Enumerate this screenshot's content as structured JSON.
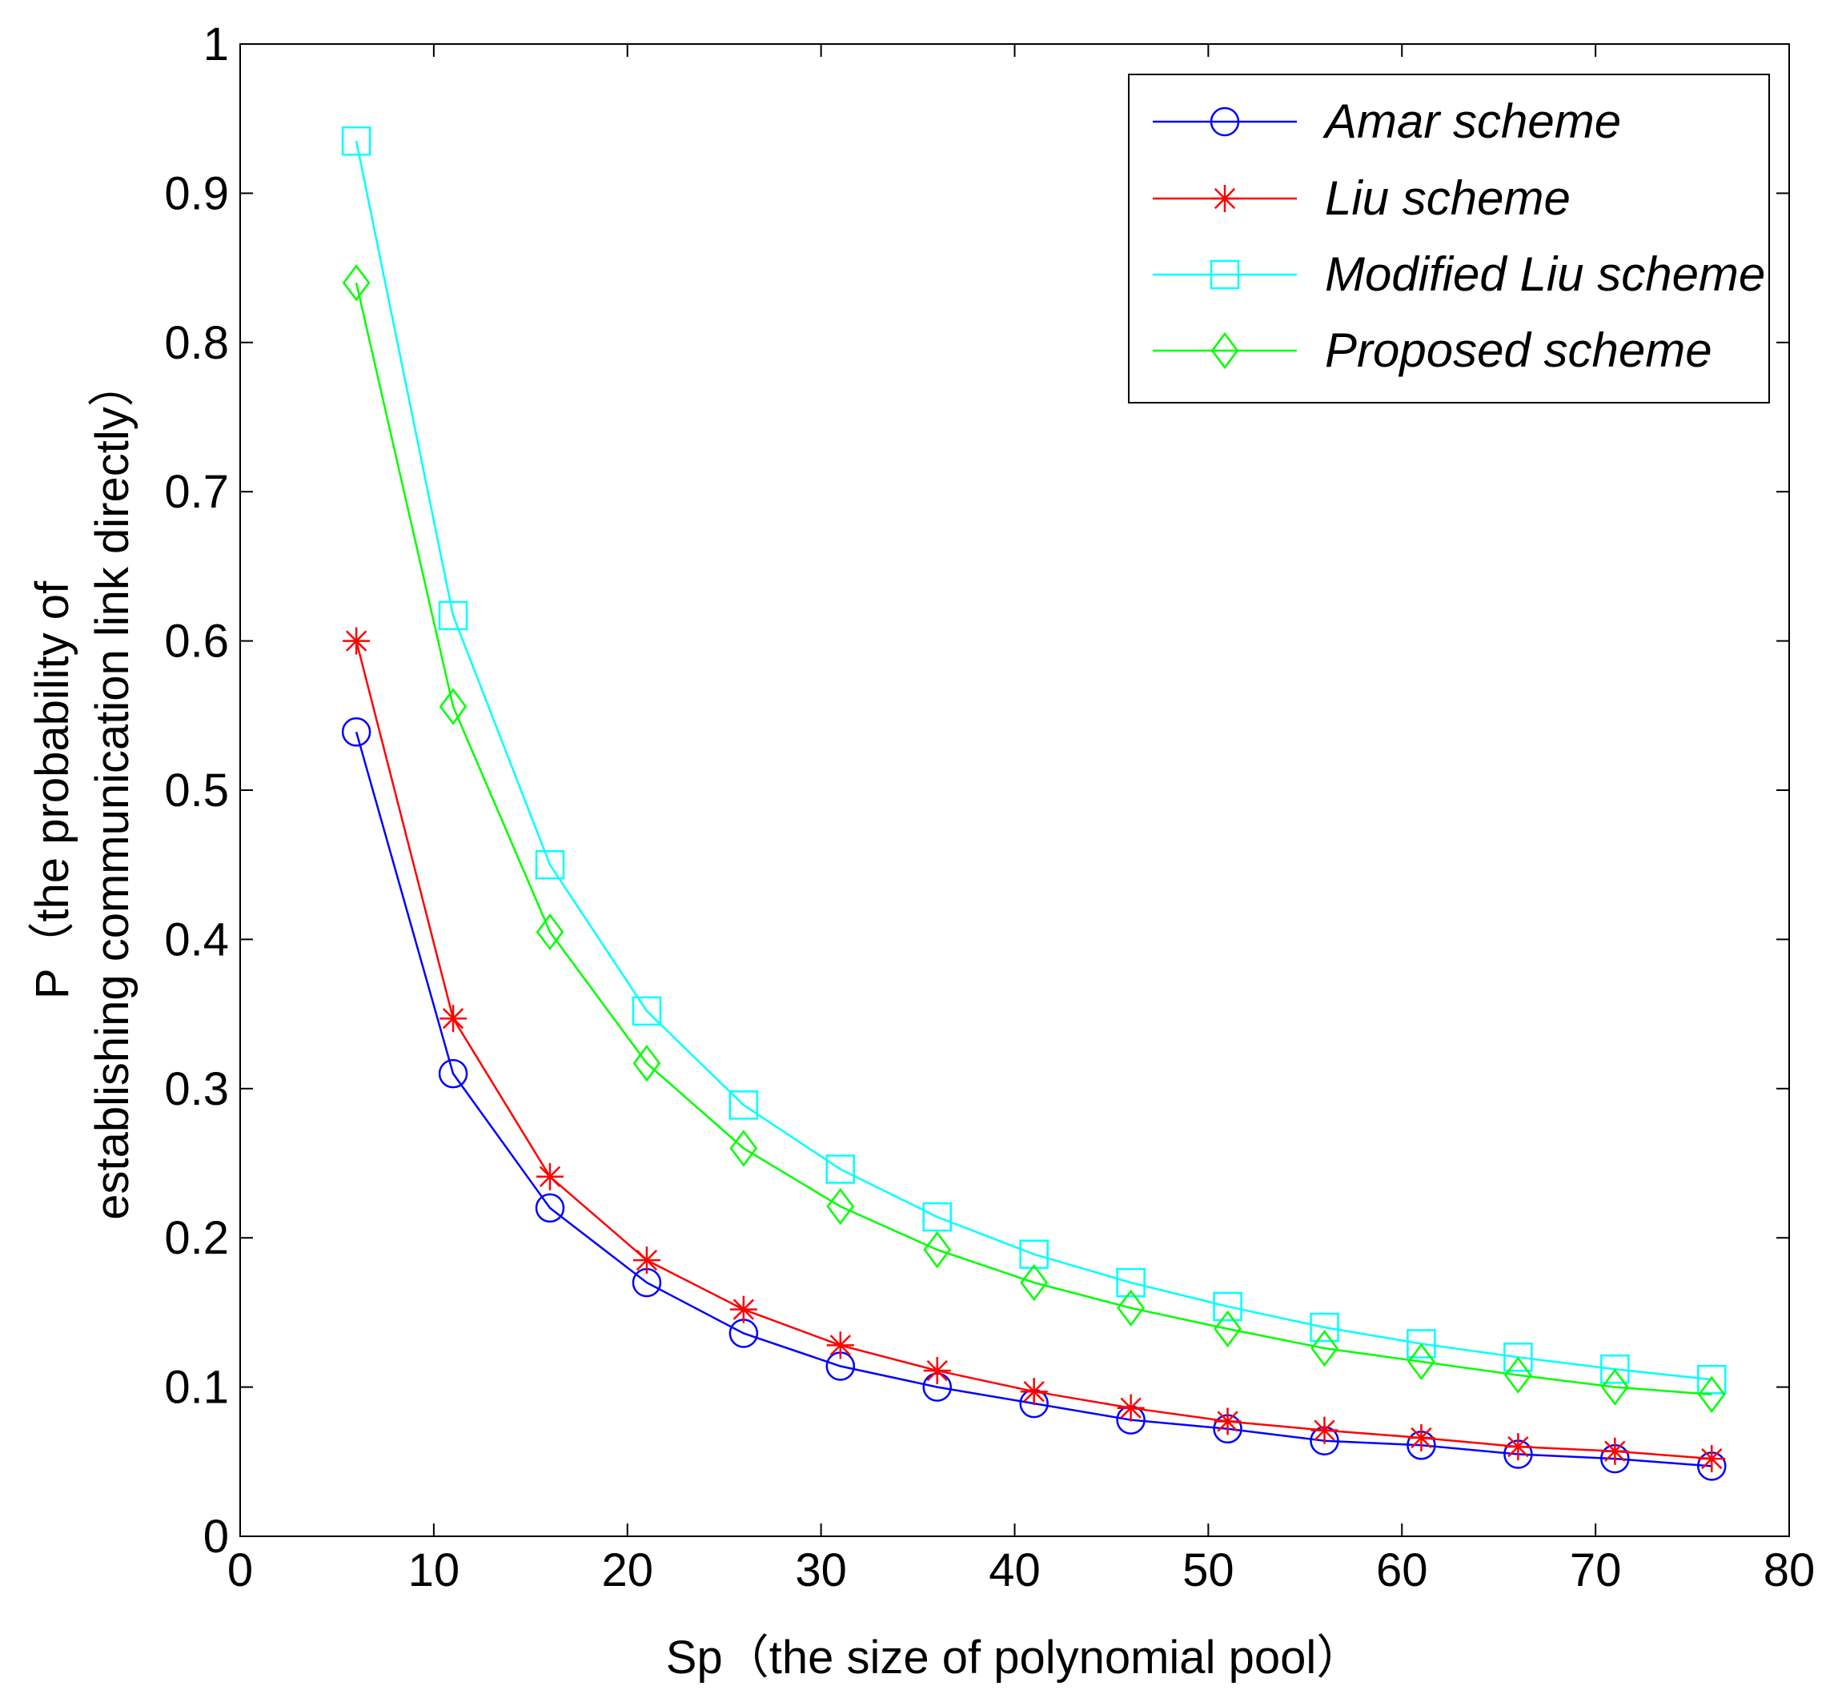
{
  "chart_data": {
    "type": "line",
    "xlabel": "Sp（the size of polynomial pool）",
    "ylabel_lines": [
      "P（the probability of",
      "establishing communication link directly）"
    ],
    "xlim": [
      0,
      80
    ],
    "ylim": [
      0,
      1
    ],
    "xticks": [
      0,
      10,
      20,
      30,
      40,
      50,
      60,
      70,
      80
    ],
    "yticks": [
      0,
      0.1,
      0.2,
      0.3,
      0.4,
      0.5,
      0.6,
      0.7,
      0.8,
      0.9,
      1
    ],
    "grid": false,
    "legend_position": "top-right",
    "x": [
      6,
      11,
      16,
      21,
      26,
      31,
      36,
      41,
      46,
      51,
      56,
      61,
      66,
      71,
      76
    ],
    "series": [
      {
        "name": "Amar scheme",
        "color": "#0000ff",
        "marker": "circle",
        "values": [
          0.539,
          0.31,
          0.22,
          0.17,
          0.136,
          0.114,
          0.1,
          0.089,
          0.078,
          0.072,
          0.064,
          0.061,
          0.055,
          0.052,
          0.047
        ]
      },
      {
        "name": "Liu scheme",
        "color": "#ff0000",
        "marker": "asterisk",
        "values": [
          0.6,
          0.347,
          0.241,
          0.185,
          0.152,
          0.128,
          0.111,
          0.097,
          0.086,
          0.077,
          0.071,
          0.066,
          0.06,
          0.057,
          0.052
        ]
      },
      {
        "name": "Modified Liu scheme",
        "color": "#00ffff",
        "marker": "square",
        "values": [
          0.935,
          0.617,
          0.45,
          0.352,
          0.289,
          0.246,
          0.214,
          0.189,
          0.17,
          0.154,
          0.14,
          0.129,
          0.12,
          0.112,
          0.105
        ]
      },
      {
        "name": "Proposed scheme",
        "color": "#00ff00",
        "marker": "diamond",
        "values": [
          0.84,
          0.556,
          0.405,
          0.317,
          0.26,
          0.221,
          0.192,
          0.17,
          0.153,
          0.139,
          0.126,
          0.117,
          0.108,
          0.1,
          0.095
        ]
      }
    ]
  }
}
